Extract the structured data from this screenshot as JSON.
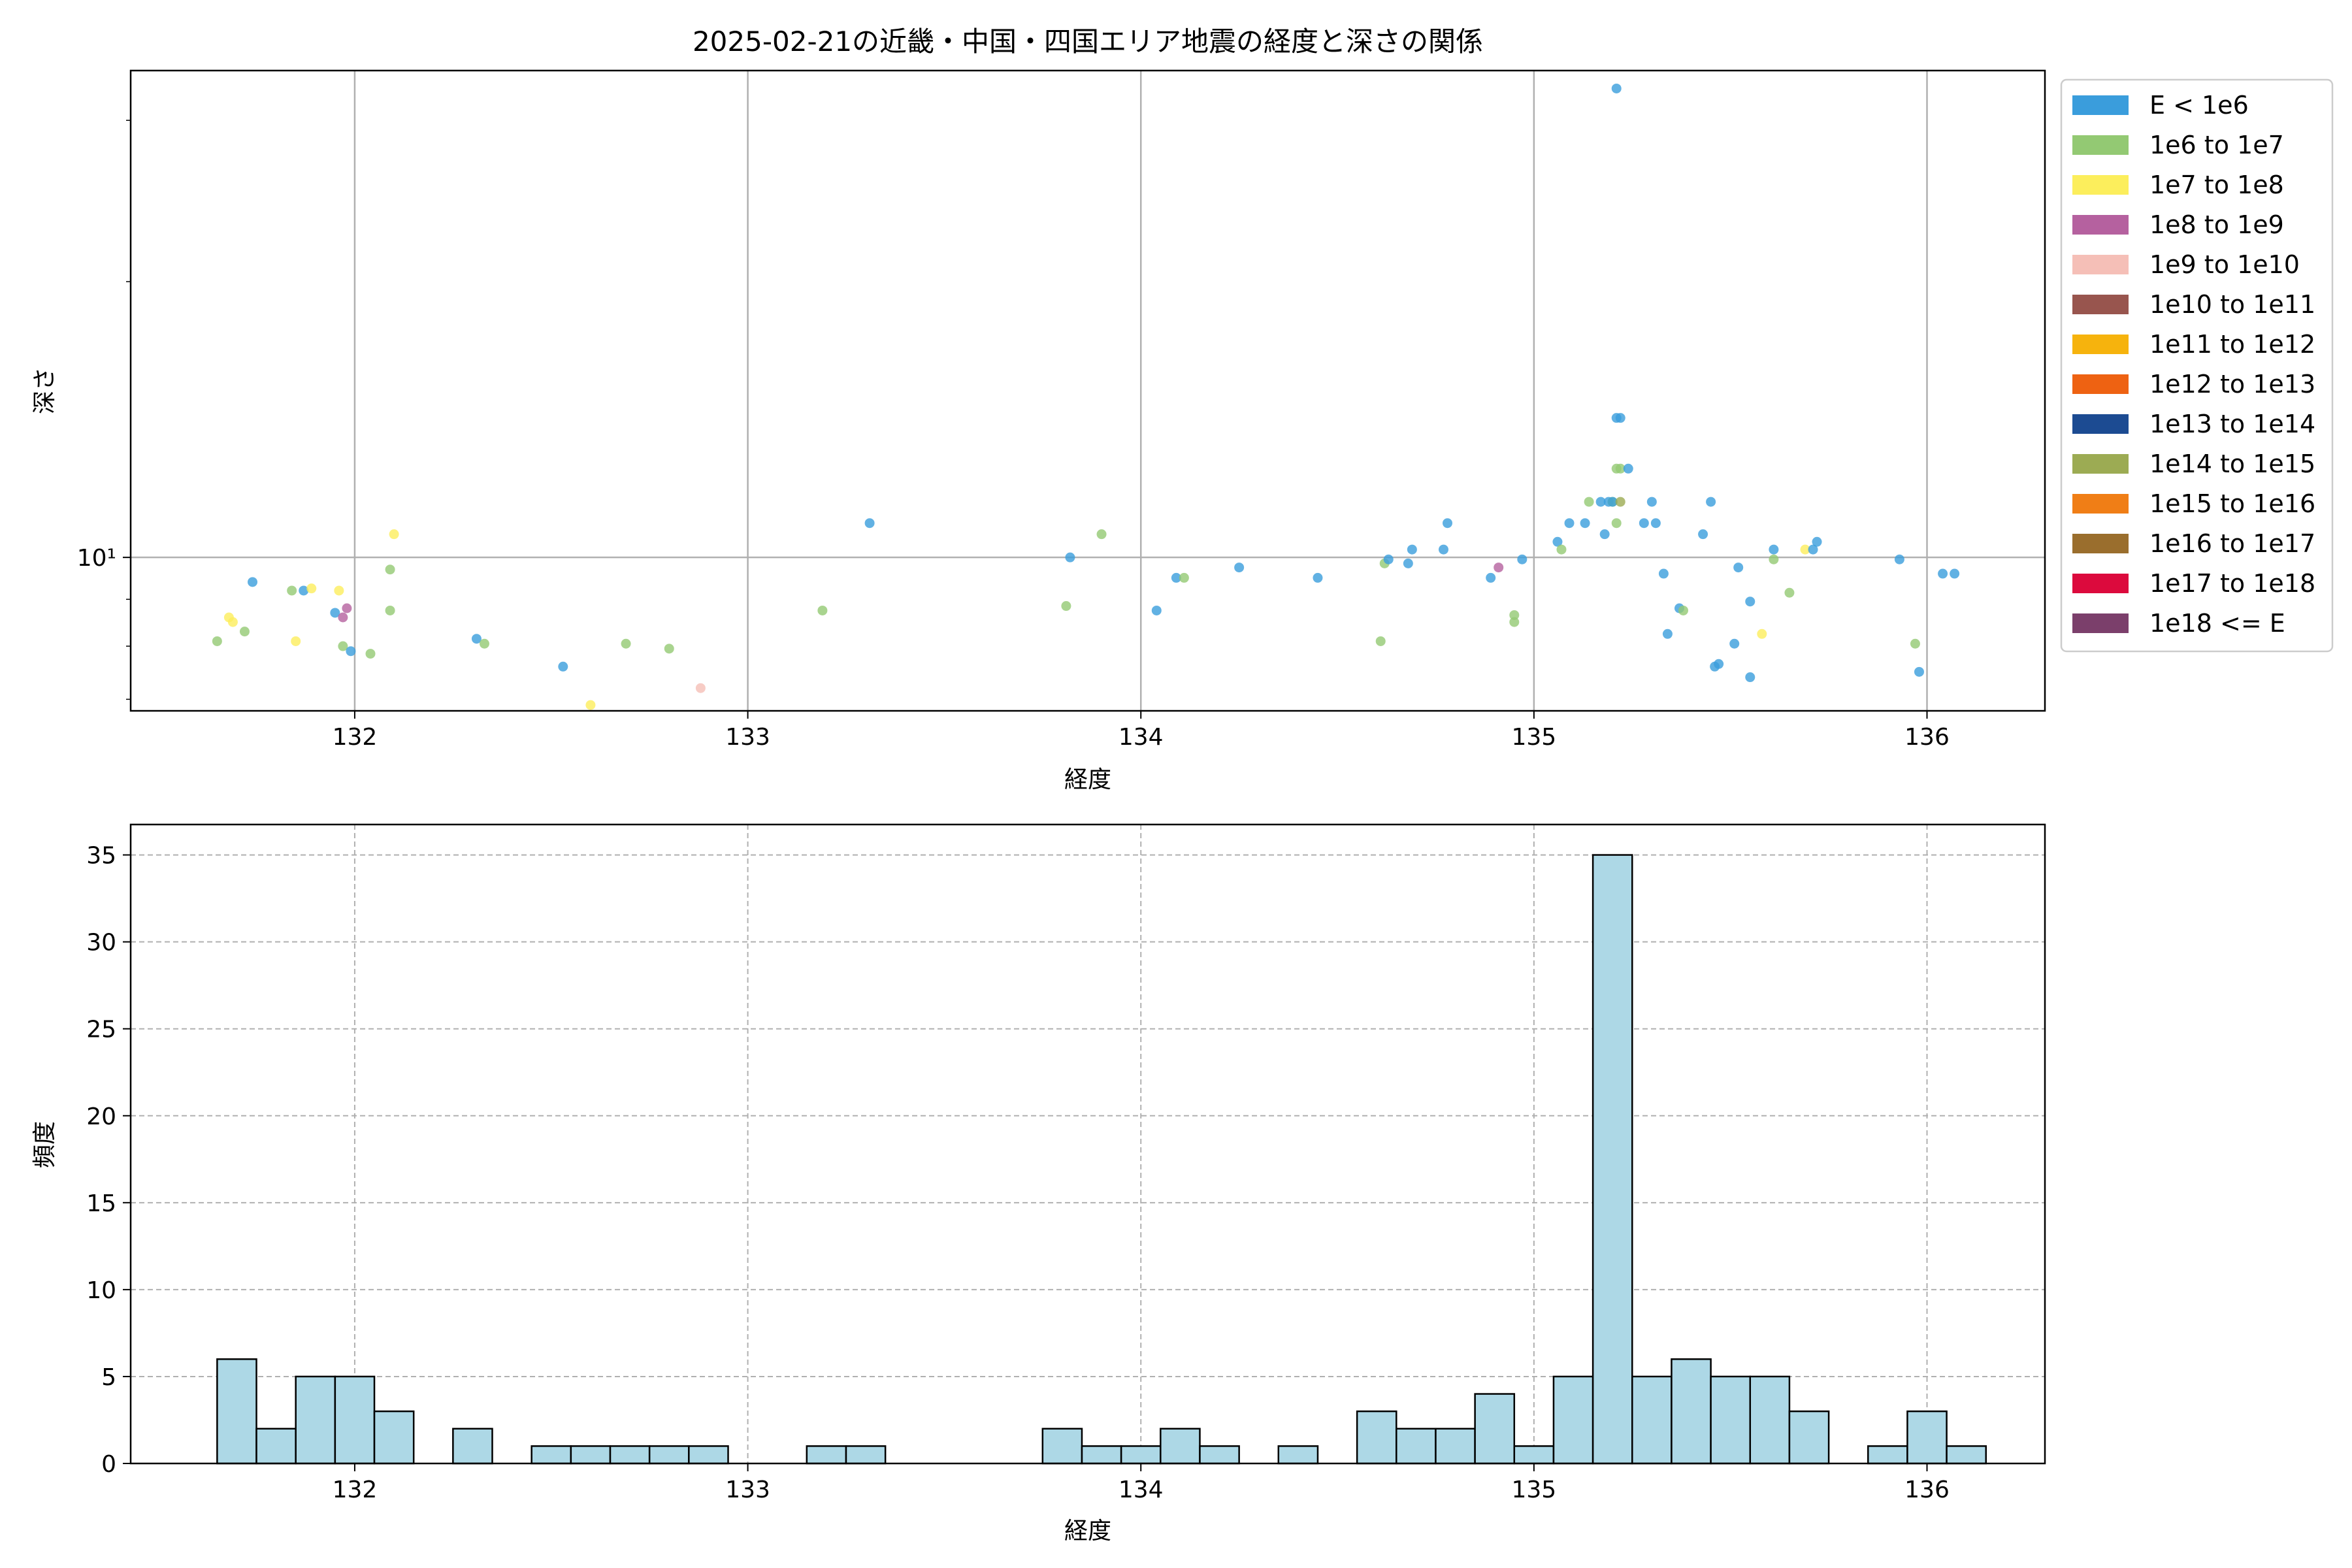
{
  "chart_data": [
    {
      "type": "scatter",
      "title": "2025-02-21の近畿・中国・四国エリア地震の経度と深さの関係",
      "xlabel": "経度",
      "ylabel": "深さ",
      "xlim": [
        131.43,
        136.3
      ],
      "ylim": [
        6.8,
        34
      ],
      "yscale": "log",
      "grid": true,
      "x_ticks": [
        132,
        133,
        134,
        135,
        136
      ],
      "y_ticks": [
        {
          "value": 10,
          "label": "10¹"
        }
      ],
      "legend_position": "outside-right",
      "legend": [
        {
          "label": "E < 1e6",
          "color": "#3a9ddc"
        },
        {
          "label": "1e6 to 1e7",
          "color": "#93c973"
        },
        {
          "label": "1e7 to 1e8",
          "color": "#fcee5c"
        },
        {
          "label": "1e8 to 1e9",
          "color": "#b5619f"
        },
        {
          "label": "1e9 to 1e10",
          "color": "#f5bfb7"
        },
        {
          "label": "1e10 to 1e11",
          "color": "#98554e"
        },
        {
          "label": "1e11 to 1e12",
          "color": "#f6b30d"
        },
        {
          "label": "1e12 to 1e13",
          "color": "#ee6212"
        },
        {
          "label": "1e13 to 1e14",
          "color": "#1c4b92"
        },
        {
          "label": "1e14 to 1e15",
          "color": "#9cab53"
        },
        {
          "label": "1e15 to 1e16",
          "color": "#f07e16"
        },
        {
          "label": "1e16 to 1e17",
          "color": "#9a6e2d"
        },
        {
          "label": "1e17 to 1e18",
          "color": "#dc0a3d"
        },
        {
          "label": "1e18 <= E",
          "color": "#7b3f6b"
        }
      ],
      "points": [
        {
          "x": 131.65,
          "y": 8.1,
          "c": 1
        },
        {
          "x": 131.68,
          "y": 8.6,
          "c": 2
        },
        {
          "x": 131.69,
          "y": 8.5,
          "c": 2
        },
        {
          "x": 131.72,
          "y": 8.3,
          "c": 1
        },
        {
          "x": 131.74,
          "y": 9.4,
          "c": 0
        },
        {
          "x": 131.84,
          "y": 9.2,
          "c": 1
        },
        {
          "x": 131.85,
          "y": 8.1,
          "c": 2
        },
        {
          "x": 131.87,
          "y": 9.2,
          "c": 0
        },
        {
          "x": 131.89,
          "y": 9.25,
          "c": 2
        },
        {
          "x": 131.95,
          "y": 8.7,
          "c": 0
        },
        {
          "x": 131.96,
          "y": 9.2,
          "c": 2
        },
        {
          "x": 131.97,
          "y": 8.6,
          "c": 3
        },
        {
          "x": 131.97,
          "y": 8.0,
          "c": 1
        },
        {
          "x": 131.98,
          "y": 8.8,
          "c": 3
        },
        {
          "x": 131.99,
          "y": 7.9,
          "c": 0
        },
        {
          "x": 132.04,
          "y": 7.85,
          "c": 1
        },
        {
          "x": 132.09,
          "y": 8.75,
          "c": 1
        },
        {
          "x": 132.09,
          "y": 9.7,
          "c": 1
        },
        {
          "x": 132.1,
          "y": 10.6,
          "c": 2
        },
        {
          "x": 132.31,
          "y": 8.15,
          "c": 0
        },
        {
          "x": 132.33,
          "y": 8.05,
          "c": 1
        },
        {
          "x": 132.53,
          "y": 7.6,
          "c": 0
        },
        {
          "x": 132.6,
          "y": 6.9,
          "c": 2
        },
        {
          "x": 132.69,
          "y": 8.05,
          "c": 1
        },
        {
          "x": 132.8,
          "y": 7.95,
          "c": 1
        },
        {
          "x": 132.88,
          "y": 7.2,
          "c": 4
        },
        {
          "x": 133.19,
          "y": 8.75,
          "c": 1
        },
        {
          "x": 133.31,
          "y": 10.9,
          "c": 0
        },
        {
          "x": 133.81,
          "y": 8.85,
          "c": 1
        },
        {
          "x": 133.82,
          "y": 10.0,
          "c": 0
        },
        {
          "x": 133.9,
          "y": 10.6,
          "c": 1
        },
        {
          "x": 134.04,
          "y": 8.75,
          "c": 0
        },
        {
          "x": 134.09,
          "y": 9.5,
          "c": 0
        },
        {
          "x": 134.11,
          "y": 9.5,
          "c": 1
        },
        {
          "x": 134.25,
          "y": 9.75,
          "c": 0
        },
        {
          "x": 134.45,
          "y": 9.5,
          "c": 0
        },
        {
          "x": 134.61,
          "y": 8.1,
          "c": 1
        },
        {
          "x": 134.62,
          "y": 9.85,
          "c": 1
        },
        {
          "x": 134.63,
          "y": 9.95,
          "c": 0
        },
        {
          "x": 134.68,
          "y": 9.85,
          "c": 0
        },
        {
          "x": 134.69,
          "y": 10.2,
          "c": 0
        },
        {
          "x": 134.77,
          "y": 10.2,
          "c": 0
        },
        {
          "x": 134.78,
          "y": 10.9,
          "c": 0
        },
        {
          "x": 134.89,
          "y": 9.5,
          "c": 0
        },
        {
          "x": 134.91,
          "y": 9.75,
          "c": 3
        },
        {
          "x": 134.95,
          "y": 8.5,
          "c": 1
        },
        {
          "x": 134.95,
          "y": 8.65,
          "c": 1
        },
        {
          "x": 134.97,
          "y": 9.95,
          "c": 0
        },
        {
          "x": 135.06,
          "y": 10.4,
          "c": 0
        },
        {
          "x": 135.07,
          "y": 10.2,
          "c": 1
        },
        {
          "x": 135.09,
          "y": 10.9,
          "c": 0
        },
        {
          "x": 135.13,
          "y": 10.9,
          "c": 0
        },
        {
          "x": 135.14,
          "y": 11.5,
          "c": 1
        },
        {
          "x": 135.17,
          "y": 11.5,
          "c": 0
        },
        {
          "x": 135.18,
          "y": 10.6,
          "c": 0
        },
        {
          "x": 135.19,
          "y": 11.5,
          "c": 0
        },
        {
          "x": 135.2,
          "y": 11.5,
          "c": 1
        },
        {
          "x": 135.2,
          "y": 11.5,
          "c": 0
        },
        {
          "x": 135.21,
          "y": 12.5,
          "c": 1
        },
        {
          "x": 135.21,
          "y": 10.9,
          "c": 1
        },
        {
          "x": 135.21,
          "y": 14.2,
          "c": 0
        },
        {
          "x": 135.21,
          "y": 32.5,
          "c": 0
        },
        {
          "x": 135.22,
          "y": 14.2,
          "c": 0
        },
        {
          "x": 135.22,
          "y": 11.5,
          "c": 9
        },
        {
          "x": 135.22,
          "y": 12.5,
          "c": 1
        },
        {
          "x": 135.24,
          "y": 12.5,
          "c": 0
        },
        {
          "x": 135.28,
          "y": 10.9,
          "c": 0
        },
        {
          "x": 135.3,
          "y": 11.5,
          "c": 0
        },
        {
          "x": 135.31,
          "y": 10.9,
          "c": 0
        },
        {
          "x": 135.33,
          "y": 9.6,
          "c": 0
        },
        {
          "x": 135.34,
          "y": 8.25,
          "c": 0
        },
        {
          "x": 135.37,
          "y": 8.8,
          "c": 0
        },
        {
          "x": 135.38,
          "y": 8.75,
          "c": 1
        },
        {
          "x": 135.43,
          "y": 10.6,
          "c": 0
        },
        {
          "x": 135.45,
          "y": 11.5,
          "c": 0
        },
        {
          "x": 135.46,
          "y": 7.6,
          "c": 0
        },
        {
          "x": 135.47,
          "y": 7.65,
          "c": 0
        },
        {
          "x": 135.51,
          "y": 8.05,
          "c": 0
        },
        {
          "x": 135.52,
          "y": 9.75,
          "c": 0
        },
        {
          "x": 135.55,
          "y": 8.95,
          "c": 0
        },
        {
          "x": 135.55,
          "y": 7.4,
          "c": 0
        },
        {
          "x": 135.58,
          "y": 8.25,
          "c": 2
        },
        {
          "x": 135.61,
          "y": 10.2,
          "c": 0
        },
        {
          "x": 135.61,
          "y": 9.95,
          "c": 1
        },
        {
          "x": 135.65,
          "y": 9.15,
          "c": 1
        },
        {
          "x": 135.69,
          "y": 10.2,
          "c": 2
        },
        {
          "x": 135.71,
          "y": 10.2,
          "c": 0
        },
        {
          "x": 135.72,
          "y": 10.4,
          "c": 0
        },
        {
          "x": 135.93,
          "y": 9.95,
          "c": 0
        },
        {
          "x": 135.97,
          "y": 8.05,
          "c": 1
        },
        {
          "x": 135.98,
          "y": 7.5,
          "c": 0
        },
        {
          "x": 136.04,
          "y": 9.6,
          "c": 0
        },
        {
          "x": 136.07,
          "y": 9.6,
          "c": 0
        }
      ]
    },
    {
      "type": "bar",
      "xlabel": "経度",
      "ylabel": "頻度",
      "xlim": [
        131.43,
        136.3
      ],
      "ylim": [
        0,
        36.75
      ],
      "grid": true,
      "grid_style": "dashed",
      "x_ticks": [
        132,
        133,
        134,
        135,
        136
      ],
      "y_ticks": [
        0,
        5,
        10,
        15,
        20,
        25,
        30,
        35
      ],
      "bar_color": "#add8e6",
      "bin_start": 131.65,
      "bin_width": 0.1,
      "values": [
        6,
        2,
        5,
        5,
        3,
        0,
        2,
        0,
        1,
        1,
        1,
        1,
        1,
        0,
        0,
        1,
        1,
        0,
        0,
        0,
        0,
        2,
        1,
        1,
        2,
        1,
        0,
        1,
        0,
        3,
        2,
        2,
        4,
        1,
        5,
        35,
        5,
        6,
        5,
        5,
        3,
        0,
        1,
        3,
        1
      ]
    }
  ]
}
